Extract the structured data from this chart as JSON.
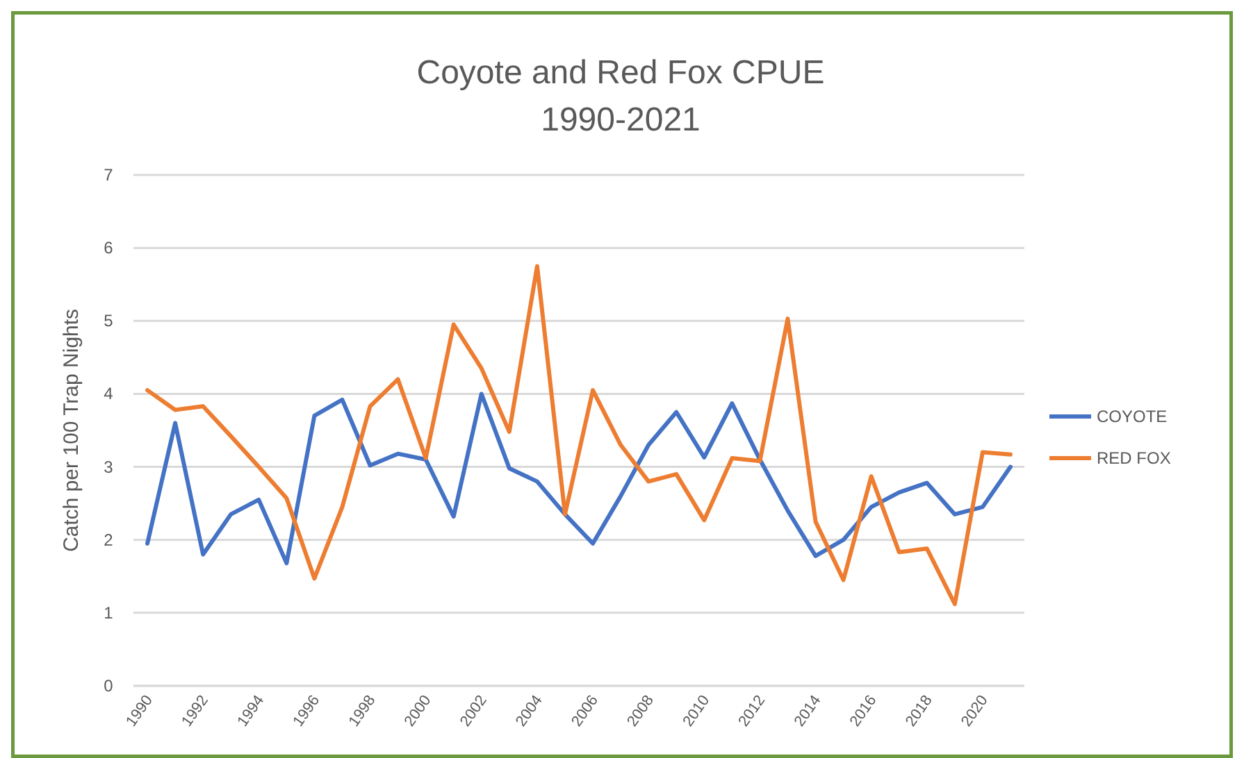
{
  "chart_data": {
    "type": "line",
    "title": "Coyote and Red Fox CPUE",
    "subtitle": "1990-2021",
    "ylabel": "Catch per  100 Trap Nights",
    "x": [
      1990,
      1991,
      1992,
      1993,
      1994,
      1995,
      1996,
      1997,
      1998,
      1999,
      2000,
      2001,
      2002,
      2003,
      2004,
      2005,
      2006,
      2007,
      2008,
      2009,
      2010,
      2011,
      2012,
      2013,
      2014,
      2015,
      2016,
      2017,
      2018,
      2019,
      2020,
      2021
    ],
    "series": [
      {
        "name": "COYOTE",
        "color": "#4472c4",
        "values": [
          1.95,
          3.6,
          1.8,
          2.35,
          2.55,
          1.68,
          3.7,
          3.92,
          3.02,
          3.18,
          3.1,
          2.32,
          4.0,
          2.98,
          2.8,
          2.35,
          1.95,
          2.6,
          3.3,
          3.75,
          3.13,
          3.87,
          3.1,
          2.4,
          1.78,
          2.0,
          2.45,
          2.65,
          2.78,
          2.35,
          2.45,
          3.0
        ]
      },
      {
        "name": "RED FOX",
        "color": "#ed7d31",
        "values": [
          4.05,
          3.78,
          3.83,
          3.42,
          3.0,
          2.57,
          1.47,
          2.45,
          3.83,
          4.2,
          3.12,
          4.95,
          4.35,
          3.48,
          5.75,
          2.35,
          4.05,
          3.3,
          2.8,
          2.9,
          2.27,
          3.12,
          3.08,
          5.03,
          2.25,
          1.45,
          2.87,
          1.83,
          1.88,
          1.12,
          3.2,
          3.17
        ]
      }
    ],
    "xlim": [
      1989.5,
      2021.5
    ],
    "xticks": [
      1990,
      1992,
      1994,
      1996,
      1998,
      2000,
      2002,
      2004,
      2006,
      2008,
      2010,
      2012,
      2014,
      2016,
      2018,
      2020
    ],
    "ylim": [
      0,
      7
    ],
    "yticks": [
      0,
      1,
      2,
      3,
      4,
      5,
      6,
      7
    ],
    "grid": "y",
    "legend": "right",
    "marker": "none",
    "line_style": "solid"
  }
}
